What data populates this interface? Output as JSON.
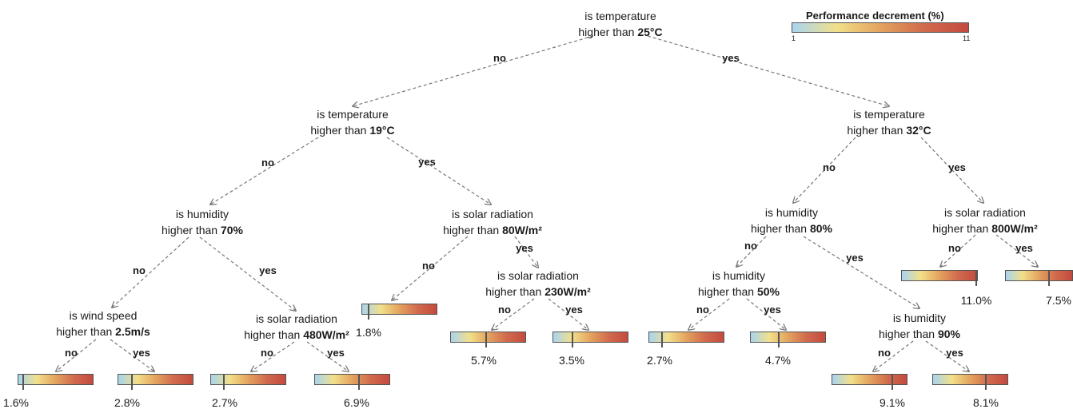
{
  "legend": {
    "title": "Performance decrement (%)",
    "min_label": "1",
    "max_label": "11",
    "min": 1,
    "max": 11
  },
  "nodes": {
    "root": {
      "prefix": "is temperature",
      "line2": "higher than ",
      "bold": "25°C"
    },
    "t19": {
      "prefix": "is temperature",
      "line2": "higher than ",
      "bold": "19°C"
    },
    "t32": {
      "prefix": "is temperature",
      "line2": "higher than ",
      "bold": "32°C"
    },
    "h70": {
      "prefix": "is humidity",
      "line2": "higher than ",
      "bold": "70%"
    },
    "sr80": {
      "prefix": "is solar radiation",
      "line2": "higher than ",
      "bold": "80W/m²"
    },
    "h80": {
      "prefix": "is humidity",
      "line2": "higher than ",
      "bold": "80%"
    },
    "sr800": {
      "prefix": "is solar radiation",
      "line2": "higher than ",
      "bold": "800W/m²"
    },
    "ws25": {
      "prefix": "is wind speed",
      "line2": "higher than ",
      "bold": "2.5m/s"
    },
    "sr480": {
      "prefix": "is solar radiation",
      "line2": "higher than ",
      "bold": "480W/m²"
    },
    "sr230": {
      "prefix": "is solar radiation",
      "line2": "higher than ",
      "bold": "230W/m²"
    },
    "h50": {
      "prefix": "is humidity",
      "line2": "higher than ",
      "bold": "50%"
    },
    "h90": {
      "prefix": "is humidity",
      "line2": "higher than ",
      "bold": "90%"
    }
  },
  "edge_labels": {
    "no": "no",
    "yes": "yes"
  },
  "leaves": [
    {
      "id": "ws-no",
      "label": "1.6%",
      "value": 1.6
    },
    {
      "id": "ws-yes",
      "label": "2.8%",
      "value": 2.8
    },
    {
      "id": "sr480-no",
      "label": "2.7%",
      "value": 2.7
    },
    {
      "id": "sr480-yes",
      "label": "6.9%",
      "value": 6.9
    },
    {
      "id": "sr80-no",
      "label": "1.8%",
      "value": 1.8
    },
    {
      "id": "sr230-no",
      "label": "5.7%",
      "value": 5.7
    },
    {
      "id": "sr230-yes",
      "label": "3.5%",
      "value": 3.5
    },
    {
      "id": "h50-no",
      "label": "2.7%",
      "value": 2.7
    },
    {
      "id": "h50-yes",
      "label": "4.7%",
      "value": 4.7
    },
    {
      "id": "h90-no",
      "label": "9.1%",
      "value": 9.1
    },
    {
      "id": "h90-yes",
      "label": "8.1%",
      "value": 8.1
    },
    {
      "id": "sr800-no",
      "label": "11.0%",
      "value": 11.0
    },
    {
      "id": "sr800-yes",
      "label": "7.5%",
      "value": 7.5
    }
  ]
}
